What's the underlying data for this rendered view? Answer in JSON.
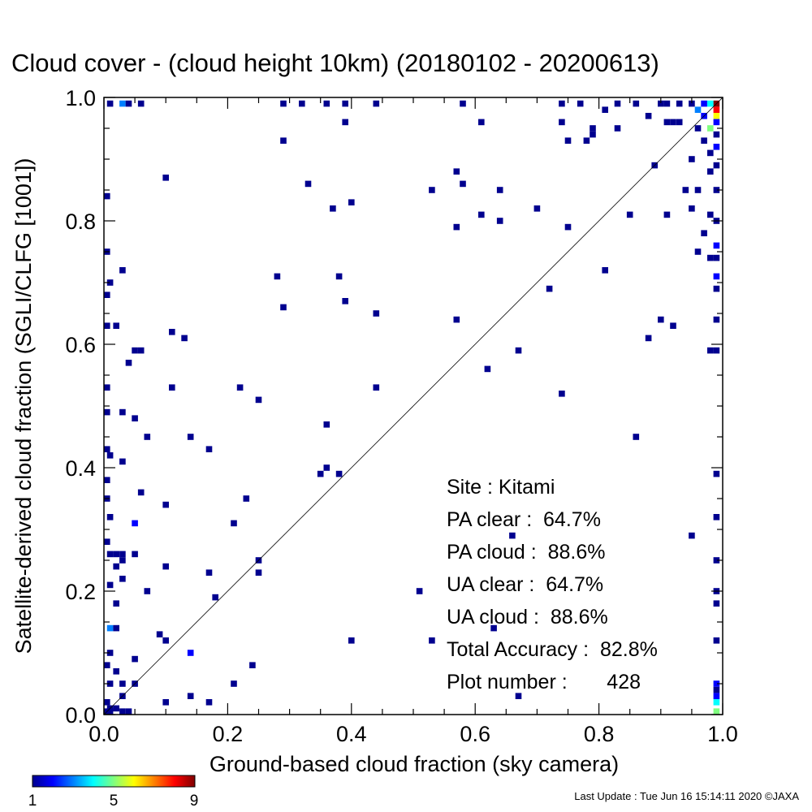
{
  "chart_data": {
    "type": "heatmap",
    "title": "Cloud cover - (cloud height 10km)  (20180102 - 20200613)",
    "xlabel": "Ground-based cloud fraction (sky camera)",
    "ylabel": "Satellite-derived cloud fraction (SGLI/CLFG [1001])",
    "xlim": [
      0,
      1
    ],
    "ylim": [
      0,
      1
    ],
    "x_ticks": [
      "0.0",
      "0.2",
      "0.4",
      "0.6",
      "0.8",
      "1.0"
    ],
    "y_ticks": [
      "0.0",
      "0.2",
      "0.4",
      "0.6",
      "0.8",
      "1.0"
    ],
    "reference_line": "y = x",
    "colorbar": {
      "min": 1,
      "max": 9,
      "labels": [
        "1",
        "5",
        "9"
      ]
    },
    "stats": [
      {
        "label": "Site : Kitami"
      },
      {
        "label": "PA clear :  64.7%"
      },
      {
        "label": "PA cloud :  88.6%"
      },
      {
        "label": "UA clear :  64.7%"
      },
      {
        "label": "UA cloud :  88.6%"
      },
      {
        "label": "Total Accuracy :  82.8%"
      },
      {
        "label": "Plot number :       428"
      }
    ],
    "points": [
      [
        0.01,
        0.99,
        1
      ],
      [
        0.03,
        0.99,
        3
      ],
      [
        0.04,
        0.99,
        1
      ],
      [
        0.06,
        0.99,
        1
      ],
      [
        0.29,
        0.99,
        1
      ],
      [
        0.32,
        0.99,
        1
      ],
      [
        0.36,
        0.99,
        1
      ],
      [
        0.39,
        0.99,
        1
      ],
      [
        0.44,
        0.99,
        1
      ],
      [
        0.58,
        0.99,
        1
      ],
      [
        0.74,
        0.99,
        1
      ],
      [
        0.77,
        0.99,
        1
      ],
      [
        0.83,
        0.99,
        1
      ],
      [
        0.86,
        0.99,
        1
      ],
      [
        0.9,
        0.99,
        1
      ],
      [
        0.91,
        0.99,
        1
      ],
      [
        0.93,
        0.99,
        1
      ],
      [
        0.95,
        0.99,
        1
      ],
      [
        0.99,
        0.99,
        9
      ],
      [
        0.97,
        0.99,
        2
      ],
      [
        0.98,
        0.99,
        4
      ],
      [
        0.99,
        0.98,
        8
      ],
      [
        0.96,
        0.98,
        3
      ],
      [
        0.97,
        0.97,
        2
      ],
      [
        0.99,
        0.97,
        6
      ],
      [
        0.99,
        0.96,
        2
      ],
      [
        0.98,
        0.95,
        5
      ],
      [
        0.93,
        0.96,
        1
      ],
      [
        0.96,
        0.95,
        1
      ],
      [
        0.99,
        0.94,
        1
      ],
      [
        0.97,
        0.93,
        1
      ],
      [
        0.99,
        0.92,
        2
      ],
      [
        0.98,
        0.91,
        1
      ],
      [
        0.99,
        0.89,
        1
      ],
      [
        0.98,
        0.88,
        1
      ],
      [
        0.81,
        0.98,
        1
      ],
      [
        0.88,
        0.97,
        1
      ],
      [
        0.91,
        0.96,
        1
      ],
      [
        0.92,
        0.96,
        1
      ],
      [
        0.79,
        0.95,
        1
      ],
      [
        0.83,
        0.95,
        1
      ],
      [
        0.61,
        0.96,
        1
      ],
      [
        0.74,
        0.96,
        1
      ],
      [
        0.39,
        0.96,
        1
      ],
      [
        0.79,
        0.94,
        1
      ],
      [
        0.75,
        0.93,
        1
      ],
      [
        0.78,
        0.93,
        1
      ],
      [
        0.29,
        0.93,
        1
      ],
      [
        0.95,
        0.9,
        1
      ],
      [
        0.89,
        0.89,
        1
      ],
      [
        0.57,
        0.88,
        1
      ],
      [
        0.58,
        0.86,
        1
      ],
      [
        0.33,
        0.86,
        1
      ],
      [
        0.1,
        0.87,
        1
      ],
      [
        0.53,
        0.85,
        1
      ],
      [
        0.64,
        0.85,
        1
      ],
      [
        0.96,
        0.85,
        1
      ],
      [
        0.99,
        0.85,
        1
      ],
      [
        0.94,
        0.85,
        1
      ],
      [
        0.0,
        0.84,
        1
      ],
      [
        0.4,
        0.83,
        1
      ],
      [
        0.37,
        0.82,
        1
      ],
      [
        0.7,
        0.82,
        1
      ],
      [
        0.95,
        0.82,
        1
      ],
      [
        0.61,
        0.81,
        1
      ],
      [
        0.85,
        0.81,
        1
      ],
      [
        0.91,
        0.81,
        1
      ],
      [
        0.98,
        0.81,
        1
      ],
      [
        0.64,
        0.8,
        1
      ],
      [
        0.99,
        0.8,
        1
      ],
      [
        0.57,
        0.79,
        1
      ],
      [
        0.75,
        0.79,
        1
      ],
      [
        0.97,
        0.78,
        1
      ],
      [
        0.99,
        0.76,
        2
      ],
      [
        0.0,
        0.75,
        1
      ],
      [
        0.96,
        0.75,
        1
      ],
      [
        0.99,
        0.74,
        1
      ],
      [
        0.98,
        0.74,
        1
      ],
      [
        0.03,
        0.72,
        1
      ],
      [
        0.81,
        0.72,
        1
      ],
      [
        0.28,
        0.71,
        1
      ],
      [
        0.38,
        0.71,
        1
      ],
      [
        0.99,
        0.71,
        2
      ],
      [
        0.01,
        0.7,
        1
      ],
      [
        0.72,
        0.69,
        1
      ],
      [
        0.99,
        0.69,
        1
      ],
      [
        0.0,
        0.68,
        1
      ],
      [
        0.39,
        0.67,
        1
      ],
      [
        0.29,
        0.66,
        1
      ],
      [
        0.44,
        0.65,
        1
      ],
      [
        0.57,
        0.64,
        1
      ],
      [
        0.9,
        0.64,
        1
      ],
      [
        0.99,
        0.64,
        1
      ],
      [
        0.0,
        0.63,
        1
      ],
      [
        0.02,
        0.63,
        1
      ],
      [
        0.92,
        0.63,
        1
      ],
      [
        0.11,
        0.62,
        1
      ],
      [
        0.13,
        0.61,
        1
      ],
      [
        0.88,
        0.61,
        1
      ],
      [
        0.05,
        0.59,
        1
      ],
      [
        0.06,
        0.59,
        1
      ],
      [
        0.67,
        0.59,
        1
      ],
      [
        0.98,
        0.59,
        1
      ],
      [
        0.99,
        0.59,
        1
      ],
      [
        0.04,
        0.57,
        1
      ],
      [
        0.62,
        0.56,
        1
      ],
      [
        0.0,
        0.53,
        1
      ],
      [
        0.11,
        0.53,
        1
      ],
      [
        0.22,
        0.53,
        1
      ],
      [
        0.44,
        0.53,
        1
      ],
      [
        0.74,
        0.52,
        1
      ],
      [
        0.25,
        0.51,
        1
      ],
      [
        0.0,
        0.49,
        1
      ],
      [
        0.03,
        0.49,
        1
      ],
      [
        0.05,
        0.48,
        1
      ],
      [
        0.36,
        0.47,
        1
      ],
      [
        0.07,
        0.45,
        1
      ],
      [
        0.14,
        0.45,
        1
      ],
      [
        0.86,
        0.45,
        1
      ],
      [
        0.0,
        0.43,
        1
      ],
      [
        0.17,
        0.43,
        1
      ],
      [
        0.01,
        0.42,
        1
      ],
      [
        0.03,
        0.41,
        1
      ],
      [
        0.36,
        0.4,
        1
      ],
      [
        0.35,
        0.39,
        1
      ],
      [
        0.38,
        0.39,
        1
      ],
      [
        0.0,
        0.38,
        1
      ],
      [
        0.99,
        0.39,
        1
      ],
      [
        0.06,
        0.36,
        1
      ],
      [
        0.0,
        0.35,
        1
      ],
      [
        0.23,
        0.35,
        1
      ],
      [
        0.1,
        0.34,
        1
      ],
      [
        0.01,
        0.32,
        1
      ],
      [
        0.05,
        0.31,
        2
      ],
      [
        0.21,
        0.31,
        1
      ],
      [
        0.99,
        0.32,
        1
      ],
      [
        0.66,
        0.29,
        1
      ],
      [
        0.95,
        0.29,
        1
      ],
      [
        0.0,
        0.28,
        1
      ],
      [
        0.01,
        0.26,
        1
      ],
      [
        0.02,
        0.26,
        1
      ],
      [
        0.03,
        0.26,
        1
      ],
      [
        0.05,
        0.26,
        1
      ],
      [
        0.25,
        0.25,
        1
      ],
      [
        0.99,
        0.25,
        1
      ],
      [
        0.03,
        0.25,
        1
      ],
      [
        0.02,
        0.24,
        1
      ],
      [
        0.1,
        0.24,
        1
      ],
      [
        0.25,
        0.23,
        1
      ],
      [
        0.17,
        0.23,
        1
      ],
      [
        0.03,
        0.22,
        1
      ],
      [
        0.01,
        0.21,
        1
      ],
      [
        0.07,
        0.2,
        1
      ],
      [
        0.51,
        0.2,
        1
      ],
      [
        0.99,
        0.2,
        1
      ],
      [
        0.18,
        0.19,
        1
      ],
      [
        0.02,
        0.18,
        1
      ],
      [
        0.99,
        0.18,
        1
      ],
      [
        0.01,
        0.14,
        3
      ],
      [
        0.02,
        0.14,
        1
      ],
      [
        0.09,
        0.13,
        1
      ],
      [
        0.63,
        0.14,
        1
      ],
      [
        0.1,
        0.12,
        1
      ],
      [
        0.4,
        0.12,
        1
      ],
      [
        0.53,
        0.12,
        1
      ],
      [
        0.99,
        0.12,
        1
      ],
      [
        0.01,
        0.1,
        1
      ],
      [
        0.14,
        0.1,
        2
      ],
      [
        0.05,
        0.09,
        1
      ],
      [
        0.24,
        0.08,
        1
      ],
      [
        0.0,
        0.08,
        1
      ],
      [
        0.02,
        0.07,
        1
      ],
      [
        0.01,
        0.05,
        1
      ],
      [
        0.03,
        0.05,
        1
      ],
      [
        0.05,
        0.05,
        1
      ],
      [
        0.21,
        0.05,
        1
      ],
      [
        0.99,
        0.05,
        2
      ],
      [
        0.99,
        0.04,
        1
      ],
      [
        0.03,
        0.03,
        1
      ],
      [
        0.14,
        0.03,
        1
      ],
      [
        0.67,
        0.03,
        1
      ],
      [
        0.99,
        0.03,
        2
      ],
      [
        0.0,
        0.02,
        1
      ],
      [
        0.1,
        0.02,
        1
      ],
      [
        0.17,
        0.02,
        1
      ],
      [
        0.99,
        0.02,
        4
      ],
      [
        0.01,
        0.01,
        1
      ],
      [
        0.02,
        0.01,
        1
      ],
      [
        0.03,
        0.0,
        1
      ],
      [
        0.04,
        0.0,
        1
      ],
      [
        0.0,
        0.0,
        1
      ],
      [
        0.01,
        0.0,
        1
      ],
      [
        0.99,
        0.0,
        5
      ]
    ]
  },
  "footer": {
    "text": "Last Update : Tue Jun 16 15:14:11 2020  ©JAXA"
  }
}
